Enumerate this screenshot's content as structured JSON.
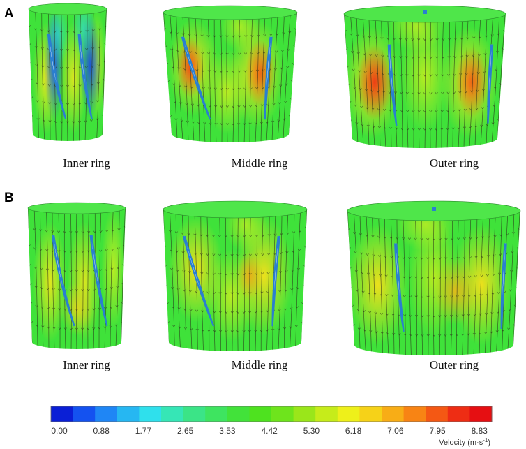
{
  "panels": [
    {
      "letter": "A",
      "rings": [
        {
          "label": "Inner ring",
          "variant": "inner"
        },
        {
          "label": "Middle ring",
          "variant": "middle"
        },
        {
          "label": "Outer ring",
          "variant": "outer"
        }
      ]
    },
    {
      "letter": "B",
      "rings": [
        {
          "label": "Inner ring",
          "variant": "inner"
        },
        {
          "label": "Middle ring",
          "variant": "middle"
        },
        {
          "label": "Outer ring",
          "variant": "outer"
        }
      ]
    }
  ],
  "colorbar": {
    "ticks": [
      "0.00",
      "0.88",
      "1.77",
      "2.65",
      "3.53",
      "4.42",
      "5.30",
      "6.18",
      "7.06",
      "7.95",
      "8.83"
    ],
    "title_main": "Velocity (m·s",
    "title_sup": "-1",
    "title_end": ")",
    "colors": [
      "#0a1fd6",
      "#1452f0",
      "#1f86f5",
      "#26b7f2",
      "#2fe0ec",
      "#36e6b6",
      "#3be487",
      "#3ee460",
      "#42e23a",
      "#4ee21f",
      "#6ee41c",
      "#9ae61a",
      "#c6ec1a",
      "#eef01a",
      "#f6d218",
      "#f8ad16",
      "#f88414",
      "#f45814",
      "#ee2d14",
      "#e60f12"
    ]
  }
}
